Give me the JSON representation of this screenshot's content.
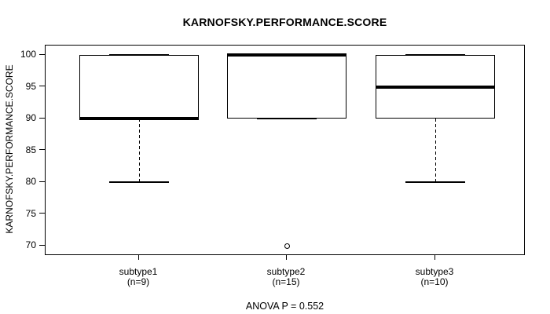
{
  "chart_data": {
    "type": "boxplot",
    "title": "KARNOFSKY.PERFORMANCE.SCORE",
    "ylabel": "KARNOFSKY.PERFORMANCE.SCORE",
    "xlabel": "",
    "annotation": "ANOVA P = 0.552",
    "ylim": [
      70,
      100
    ],
    "yticks": [
      100,
      95,
      90,
      85,
      80,
      75,
      70
    ],
    "grid": false,
    "legend": null,
    "categories": [
      "subtype1",
      "subtype2",
      "subtype3"
    ],
    "category_counts": [
      9,
      15,
      10
    ],
    "series": [
      {
        "name": "subtype1",
        "label": "subtype1",
        "sublabel": "(n=9)",
        "n": 9,
        "whisker_low": 80,
        "q1": 90,
        "median": 90,
        "q3": 100,
        "whisker_high": 100,
        "outliers": []
      },
      {
        "name": "subtype2",
        "label": "subtype2",
        "sublabel": "(n=15)",
        "n": 15,
        "whisker_low": 90,
        "q1": 90,
        "median": 100,
        "q3": 100,
        "whisker_high": 100,
        "outliers": [
          70
        ]
      },
      {
        "name": "subtype3",
        "label": "subtype3",
        "sublabel": "(n=10)",
        "n": 10,
        "whisker_low": 80,
        "q1": 90,
        "median": 95,
        "q3": 100,
        "whisker_high": 100,
        "outliers": []
      }
    ],
    "colors": {
      "line": "#000000",
      "background": "#ffffff"
    }
  }
}
